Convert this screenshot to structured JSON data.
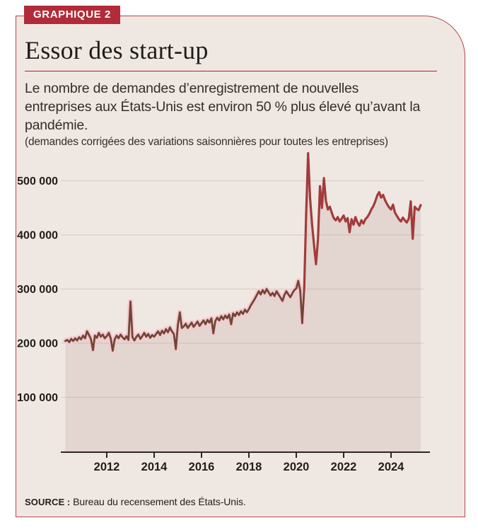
{
  "badge": {
    "label": "GRAPHIQUE 2"
  },
  "header": {
    "title": "Essor des start-up",
    "subtitle": "Le nombre de demandes d’enregistrement de nouvelles entreprises aux États-Unis est environ 50 % plus élevé qu’avant la pandémie.",
    "note": "(demandes corrigées des variations saisonnières pour toutes les entreprises)"
  },
  "footer": {
    "source_label": "SOURCE :",
    "source_text": " Bureau du recensement des États-Unis."
  },
  "colors": {
    "card_background": "#EFE8E2",
    "card_border": "#B5454F",
    "badge_background": "#B12B38",
    "badge_text": "#FFFFFF",
    "title_rule": "#B0212F",
    "gridline": "#A8948A",
    "axis": "#2B2724",
    "area_fill": "#E3D5D0",
    "line_pre2020": "#6E4836",
    "line_post2020": "#A33B3B",
    "line_glow": "#F9C6D0",
    "text": "#211D1A"
  },
  "chart_data": {
    "type": "area",
    "title": "Essor des start-up",
    "subtitle": "Le nombre de demandes d’enregistrement de nouvelles entreprises aux États-Unis est environ 50 % plus élevé qu’avant la pandémie.",
    "unit_note": "demandes corrigées des variations saisonnières pour toutes les entreprises",
    "source": "Bureau du recensement des États-Unis",
    "x_start_year": 2010.25,
    "x_step_years": 0.0833333,
    "x_range": [
      2010.25,
      2025.33
    ],
    "ylim": [
      0,
      560000
    ],
    "grid": true,
    "legend": "none",
    "x_ticks": [
      2012,
      2014,
      2016,
      2018,
      2020,
      2022,
      2024
    ],
    "x_tick_labels": [
      "2012",
      "2014",
      "2016",
      "2018",
      "2020",
      "2022",
      "2024"
    ],
    "y_ticks": [
      100000,
      200000,
      300000,
      400000,
      500000
    ],
    "y_tick_labels": [
      "100 000",
      "200 000",
      "300 000",
      "400 000",
      "500 000"
    ],
    "color_split_year": 2020.25,
    "series": [
      {
        "name": "demandes-enregistrement-entreprises",
        "values": [
          204000,
          206000,
          202000,
          208000,
          204000,
          209000,
          205000,
          211000,
          207000,
          214000,
          209000,
          222000,
          215000,
          207000,
          187000,
          214000,
          210000,
          219000,
          212000,
          216000,
          209000,
          213000,
          219000,
          209000,
          186000,
          207000,
          214000,
          209000,
          216000,
          211000,
          207000,
          213000,
          206000,
          277000,
          211000,
          205000,
          212000,
          216000,
          208000,
          213000,
          219000,
          212000,
          217000,
          210000,
          215000,
          212000,
          217000,
          222000,
          215000,
          223000,
          218000,
          226000,
          220000,
          229000,
          222000,
          217000,
          189000,
          233000,
          257000,
          228000,
          231000,
          236000,
          228000,
          233000,
          238000,
          230000,
          235000,
          240000,
          232000,
          237000,
          242000,
          235000,
          243000,
          238000,
          246000,
          218000,
          241000,
          247000,
          242000,
          250000,
          244000,
          251000,
          246000,
          253000,
          235000,
          255000,
          250000,
          257000,
          252000,
          259000,
          254000,
          262000,
          257000,
          263000,
          270000,
          276000,
          282000,
          289000,
          296000,
          290000,
          298000,
          292000,
          300000,
          294000,
          288000,
          293000,
          287000,
          296000,
          290000,
          284000,
          278000,
          289000,
          296000,
          290000,
          285000,
          292000,
          298000,
          301000,
          315000,
          297000,
          237000,
          300000,
          440000,
          551000,
          468000,
          420000,
          382000,
          346000,
          392000,
          490000,
          450000,
          505000,
          463000,
          447000,
          452000,
          441000,
          431000,
          427000,
          433000,
          425000,
          430000,
          436000,
          425000,
          431000,
          405000,
          429000,
          419000,
          433000,
          423000,
          417000,
          427000,
          421000,
          429000,
          433000,
          439000,
          447000,
          453000,
          462000,
          473000,
          479000,
          469000,
          474000,
          464000,
          457000,
          451000,
          447000,
          456000,
          441000,
          435000,
          429000,
          425000,
          432000,
          427000,
          423000,
          430000,
          462000,
          393000,
          452000,
          448000,
          446000,
          455000
        ]
      }
    ]
  }
}
